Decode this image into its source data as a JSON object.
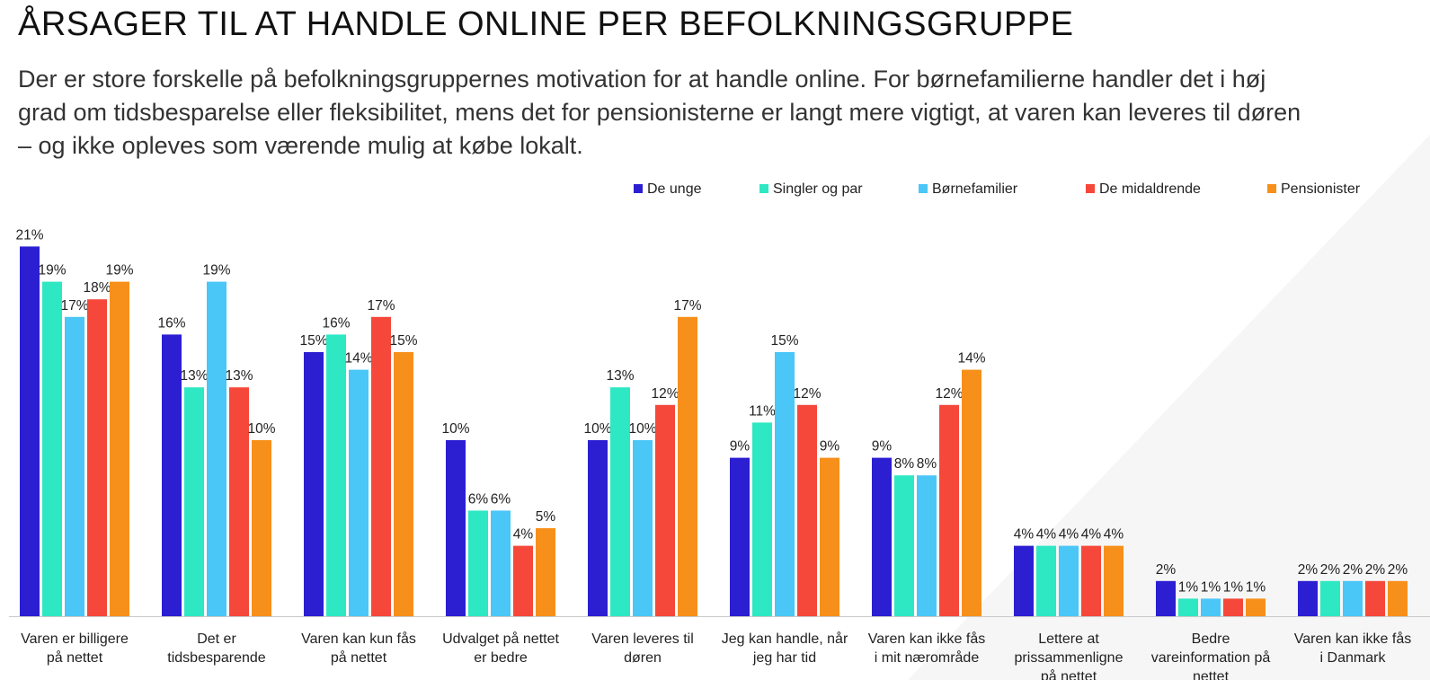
{
  "header": {
    "title": "ÅRSAGER TIL AT HANDLE ONLINE PER BEFOLKNINGSGRUPPE",
    "subtitle": "Der er store forskelle på befolkningsgruppernes motivation for at handle online. For børnefamilierne handler det i høj grad om tidsbesparelse eller fleksibilitet, mens det for pensionisterne er langt mere vigtigt, at varen kan leveres til døren – og ikke opleves som værende mulig at købe lokalt."
  },
  "chart_data": {
    "type": "bar",
    "title": "ÅRSAGER TIL AT HANDLE ONLINE PER BEFOLKNINGSGRUPPE",
    "xlabel": "",
    "ylabel": "",
    "grid": false,
    "legend_position": "top-right",
    "value_suffix": "%",
    "categories": [
      [
        "Varen er billigere",
        "på nettet"
      ],
      [
        "Det er",
        "tidsbesparende"
      ],
      [
        "Varen kan kun fås",
        "på nettet"
      ],
      [
        "Udvalget på nettet",
        "er bedre"
      ],
      [
        "Varen leveres til",
        "døren"
      ],
      [
        "Jeg kan handle, når",
        "jeg har tid"
      ],
      [
        "Varen kan ikke fås",
        "i mit nærområde"
      ],
      [
        "Lettere at",
        "prissammenligne",
        "på nettet"
      ],
      [
        "Bedre",
        "vareinformation på",
        "nettet"
      ],
      [
        "Varen kan ikke fås",
        "i Danmark"
      ]
    ],
    "series": [
      {
        "name": "De unge",
        "color": "#2b1fd1",
        "values": [
          21,
          16,
          15,
          10,
          10,
          9,
          9,
          4,
          2,
          2
        ]
      },
      {
        "name": "Singler og par",
        "color": "#2de8c3",
        "values": [
          19,
          13,
          16,
          6,
          13,
          11,
          8,
          4,
          1,
          2
        ]
      },
      {
        "name": "Børnefamilier",
        "color": "#4ac6f7",
        "values": [
          17,
          19,
          14,
          6,
          10,
          15,
          8,
          4,
          1,
          2
        ]
      },
      {
        "name": "De midaldrende",
        "color": "#f5483a",
        "values": [
          18,
          13,
          17,
          4,
          12,
          12,
          12,
          4,
          1,
          2
        ]
      },
      {
        "name": "Pensionister",
        "color": "#f7901a",
        "values": [
          19,
          10,
          15,
          5,
          17,
          9,
          14,
          4,
          1,
          2
        ]
      }
    ]
  }
}
